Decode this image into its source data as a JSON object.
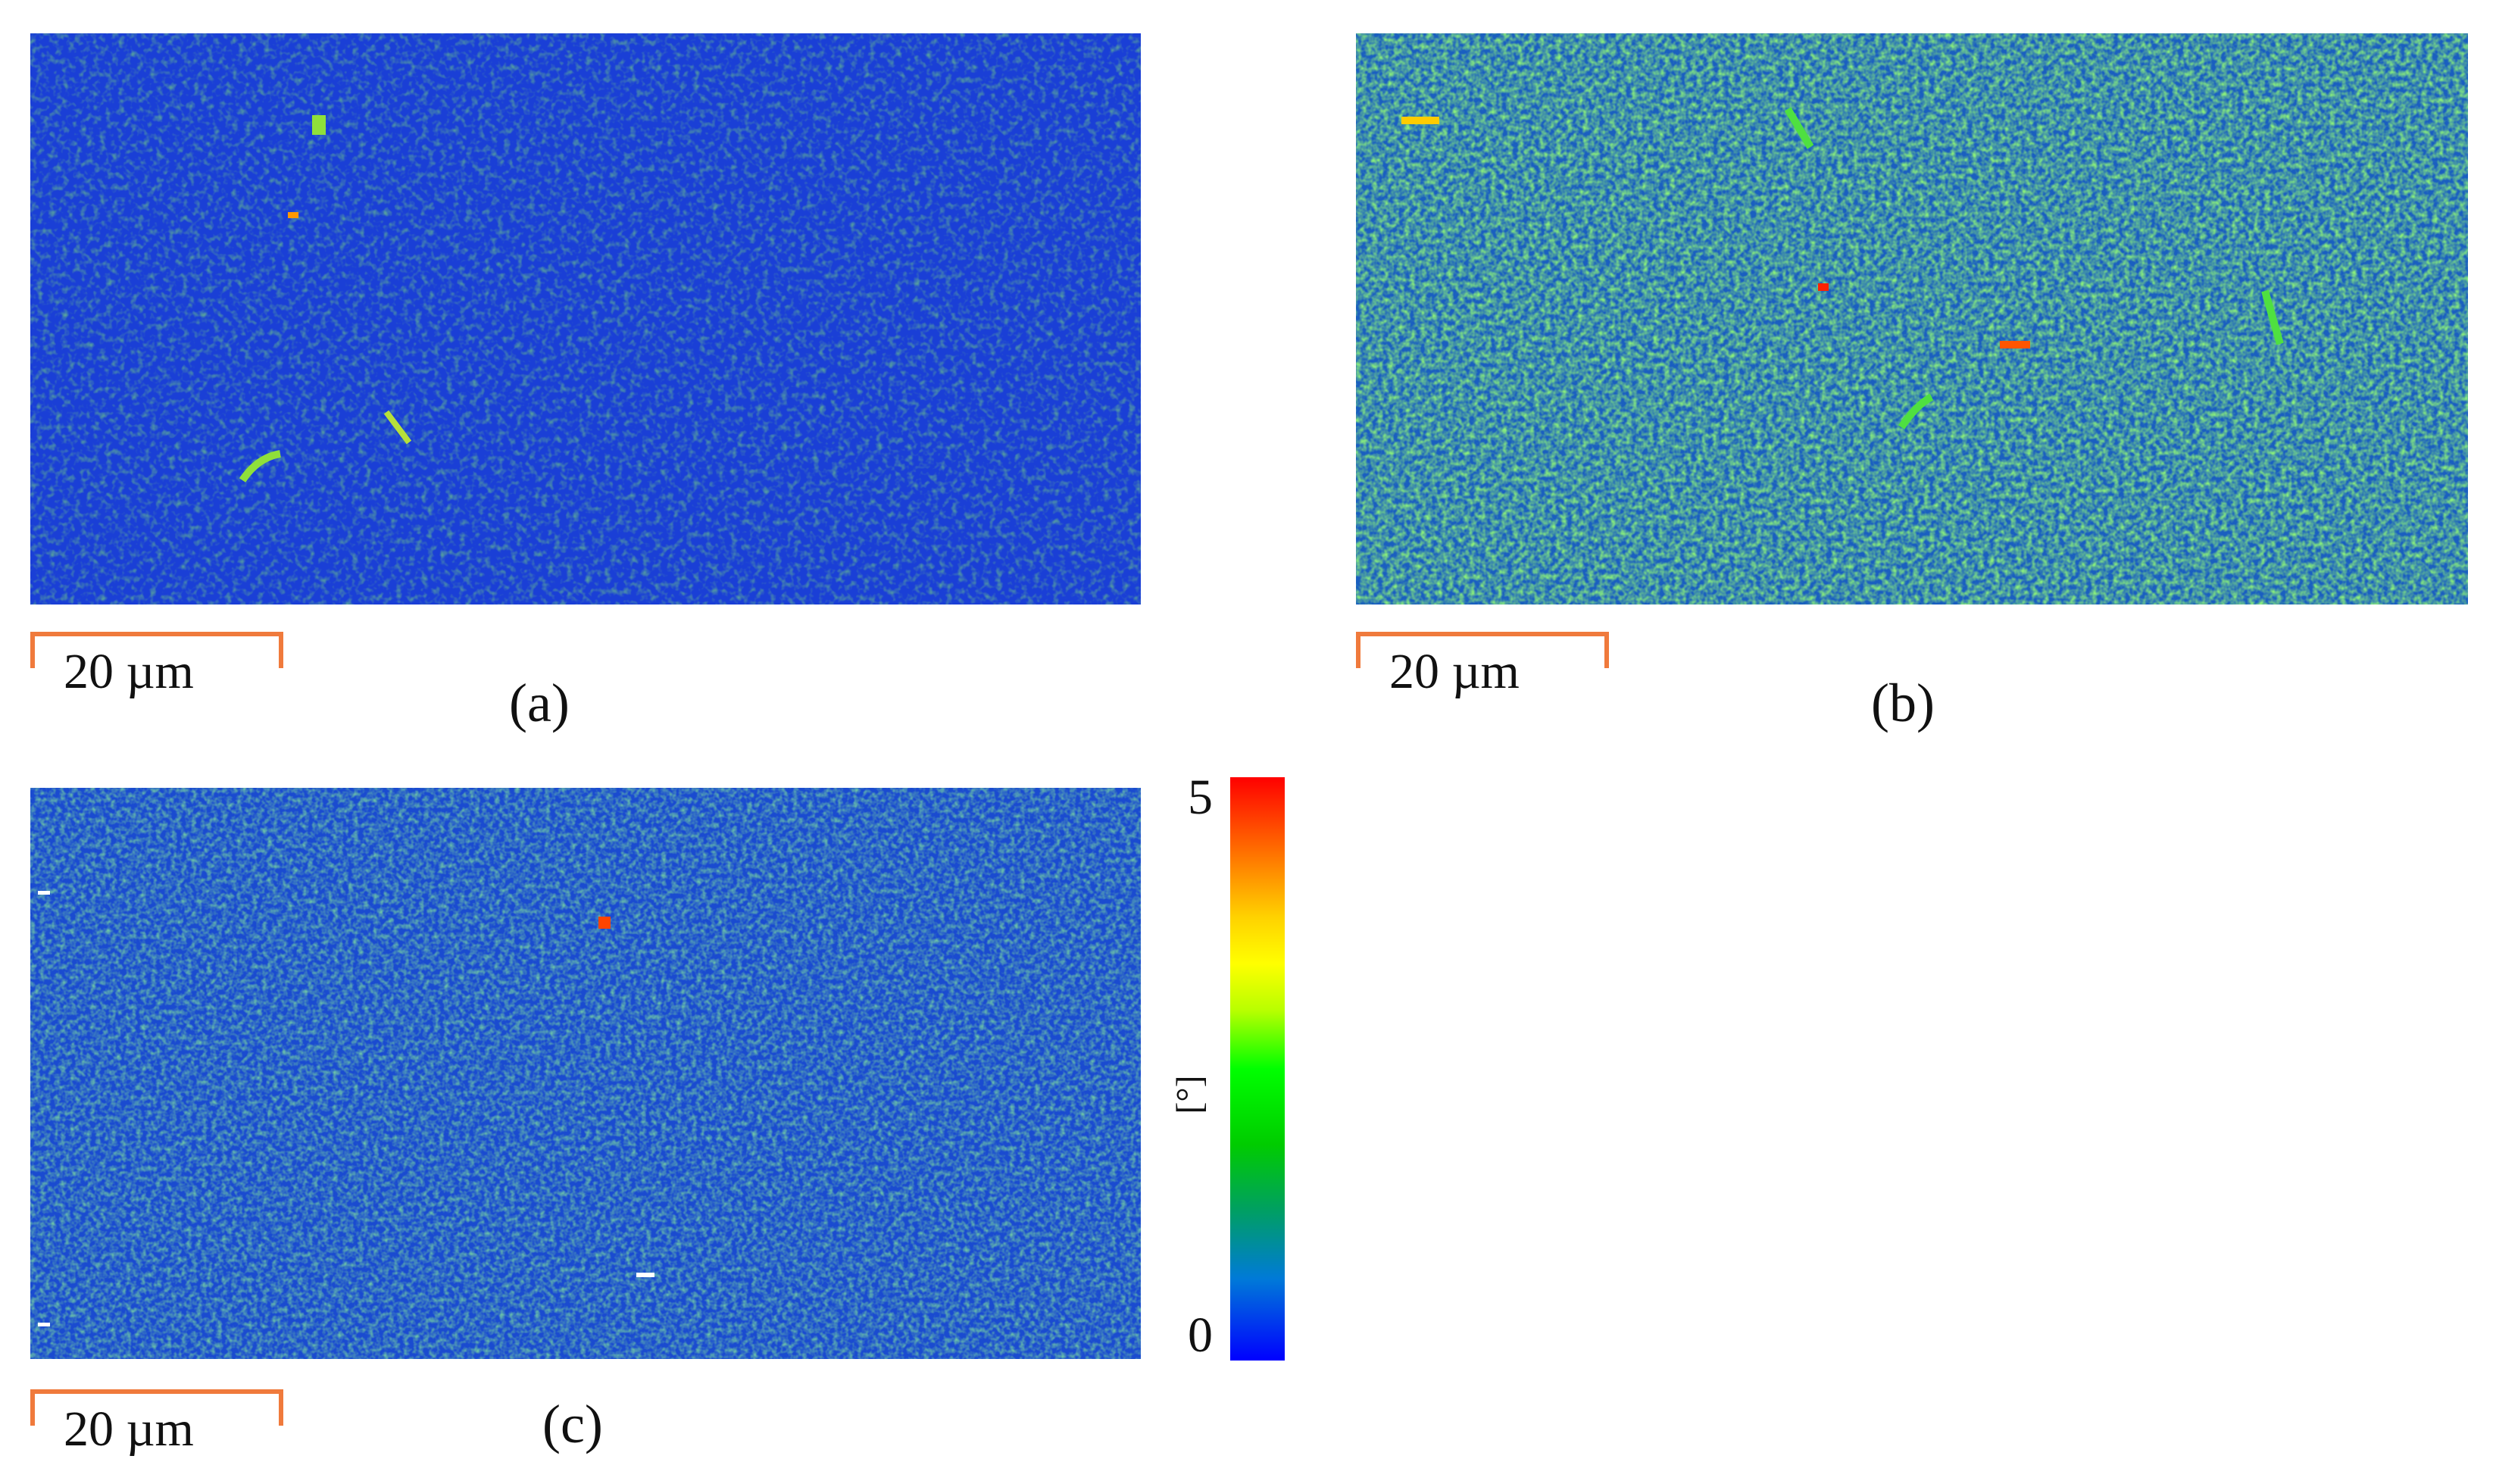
{
  "figure": {
    "panels": [
      {
        "id": "a",
        "label": "(a)",
        "scale_bar": "20 µm",
        "base_color": "#1a3fd6",
        "noise_color": "#2fae4a"
      },
      {
        "id": "b",
        "label": "(b)",
        "scale_bar": "20 µm",
        "base_color": "#1d8a8a",
        "noise_color": "#3ad240"
      },
      {
        "id": "c",
        "label": "(c)",
        "scale_bar": "20 µm",
        "base_color": "#1a4bd0",
        "noise_color": "#2aa566"
      }
    ],
    "colorbar": {
      "max_label": "5",
      "min_label": "0",
      "unit": "[°]",
      "colors": [
        "#0000ff",
        "#00a060",
        "#00ff00",
        "#ffff00",
        "#ff0000"
      ]
    },
    "scale_bar_color": "#f07a3c"
  }
}
